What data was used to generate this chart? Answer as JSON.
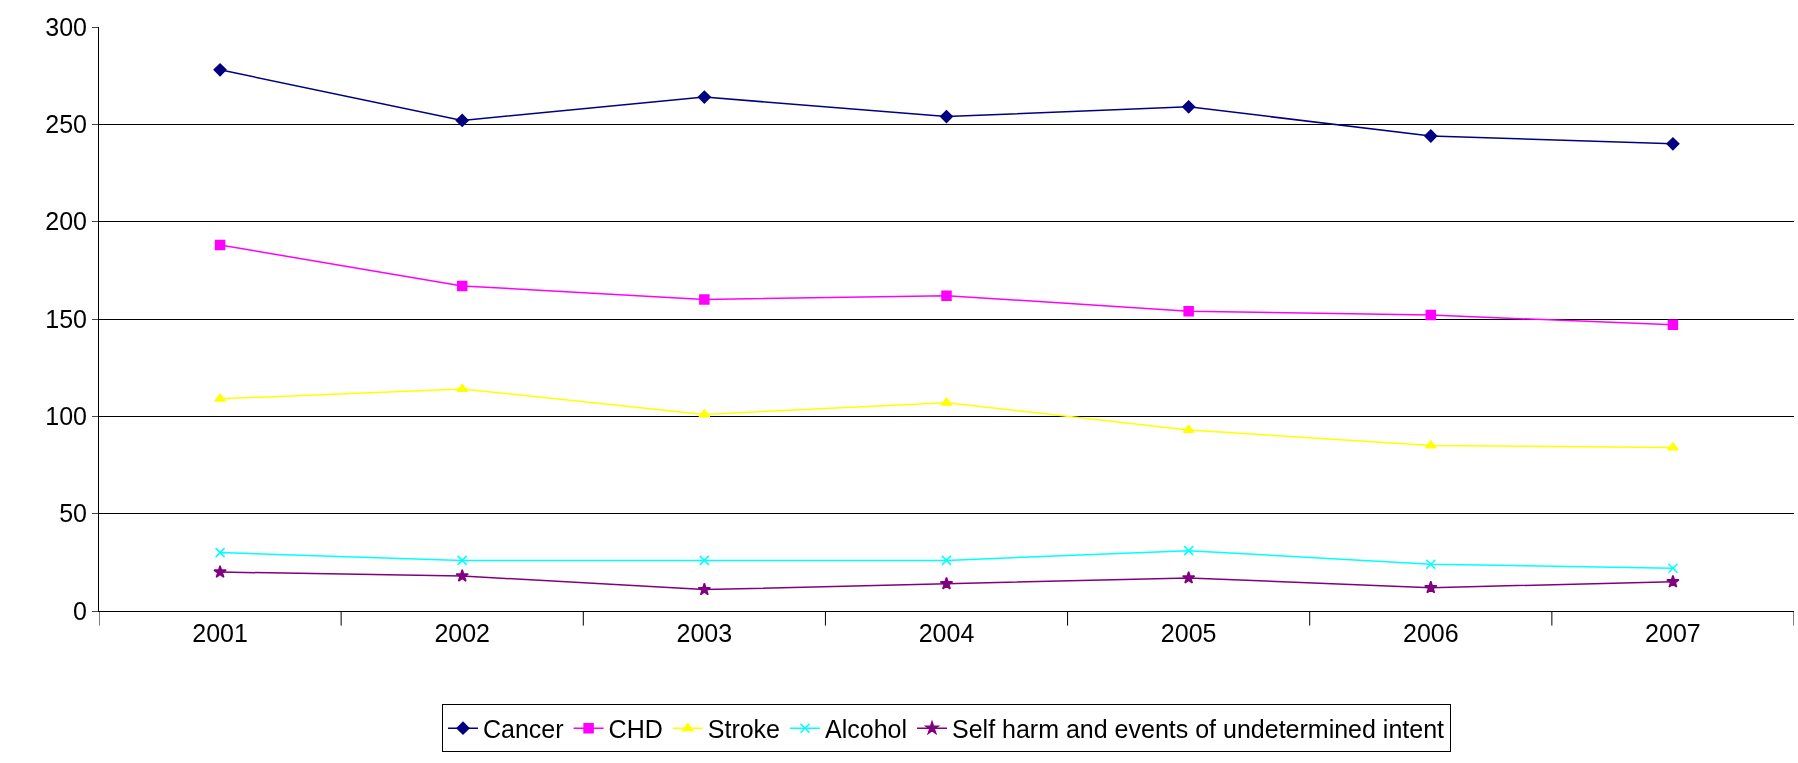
{
  "chart_data": {
    "type": "line",
    "categories": [
      "2001",
      "2002",
      "2003",
      "2004",
      "2005",
      "2006",
      "2007"
    ],
    "series": [
      {
        "name": "Cancer",
        "color": "#000080",
        "marker": "diamond",
        "values": [
          278,
          252,
          264,
          254,
          259,
          244,
          240
        ]
      },
      {
        "name": "CHD",
        "color": "#ff00ff",
        "marker": "square",
        "values": [
          188,
          167,
          160,
          162,
          154,
          152,
          147
        ]
      },
      {
        "name": "Stroke",
        "color": "#ffff00",
        "marker": "triangle",
        "values": [
          109,
          114,
          101,
          107,
          93,
          85,
          84
        ]
      },
      {
        "name": "Alcohol",
        "color": "#00ffff",
        "marker": "cross",
        "values": [
          30,
          26,
          26,
          26,
          31,
          24,
          22
        ]
      },
      {
        "name": "Self harm and events of undetermined intent",
        "color": "#800080",
        "marker": "star",
        "values": [
          20,
          18,
          11,
          14,
          17,
          12,
          15
        ]
      }
    ],
    "ylim": [
      0,
      300
    ],
    "yticks": [
      0,
      50,
      100,
      150,
      200,
      250,
      300
    ],
    "grid": "y",
    "legend": "bottom"
  }
}
